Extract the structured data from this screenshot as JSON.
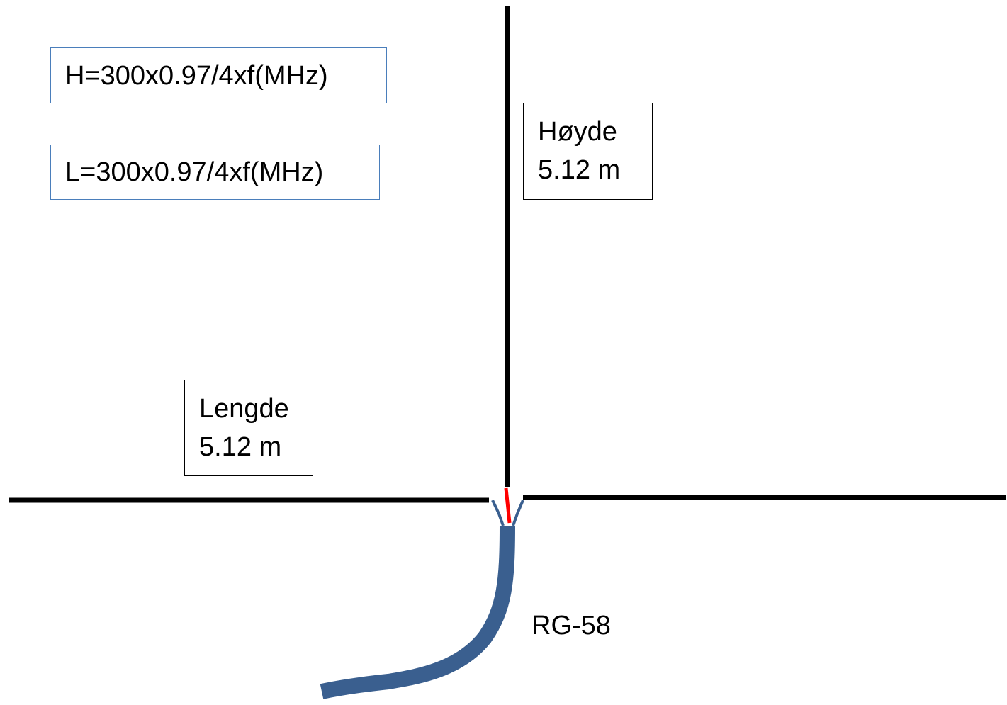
{
  "formulas": {
    "height": "H=300x0.97/4xf(MHz)",
    "length": "L=300x0.97/4xf(MHz)"
  },
  "height_label": {
    "title": "Høyde",
    "value": "5.12 m"
  },
  "length_label": {
    "title": "Lengde",
    "value": "5.12 m"
  },
  "cable_label": "RG-58",
  "colors": {
    "element": "#000000",
    "cable": "#3a5f8f",
    "feed": "#ff0000",
    "formula_border": "#4a7ebb"
  }
}
